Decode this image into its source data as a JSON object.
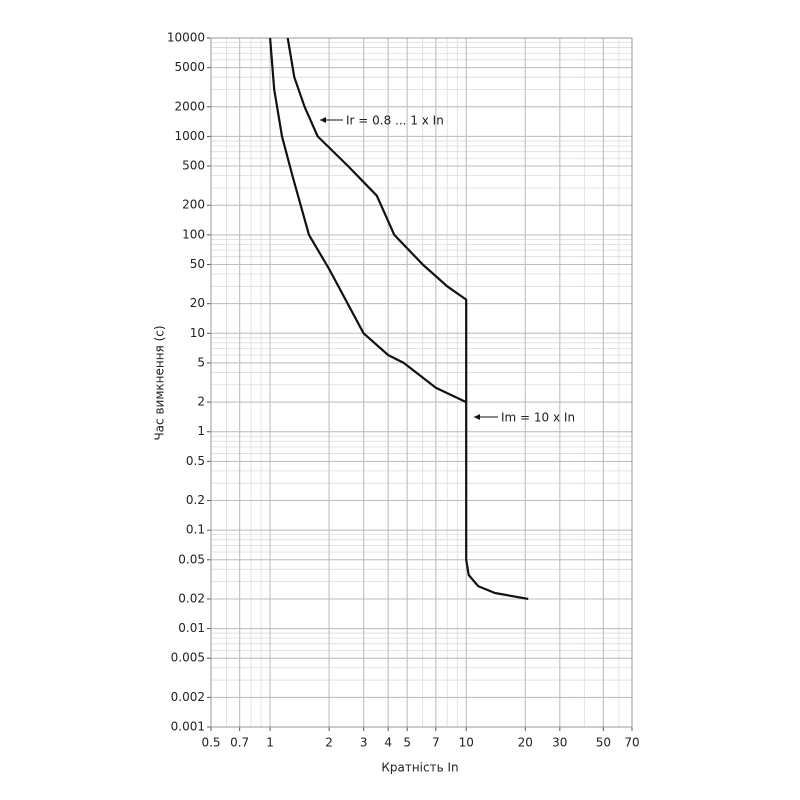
{
  "chart_data": {
    "type": "line",
    "xlabel": "Кратність In",
    "ylabel": "Час вимкнення (с)",
    "log_x": true,
    "log_y": true,
    "grid": true,
    "minor_grid": true,
    "xlim": [
      0.5,
      70
    ],
    "ylim": [
      0.001,
      10000
    ],
    "xticks": [
      0.5,
      0.7,
      1,
      2,
      3,
      4,
      5,
      7,
      10,
      20,
      30,
      50,
      70
    ],
    "yticks": [
      0.001,
      0.002,
      0.005,
      0.01,
      0.02,
      0.05,
      0.1,
      0.2,
      0.5,
      1,
      2,
      5,
      10,
      20,
      50,
      100,
      200,
      500,
      1000,
      2000,
      5000,
      10000
    ],
    "series": [
      {
        "color": "#111111",
        "x": [
          1.23,
          1.33,
          1.5,
          1.75,
          2.5,
          3.5,
          4.3,
          6,
          8,
          10,
          10,
          10.3,
          11.5,
          14,
          20.7
        ],
        "values": [
          10000,
          4000,
          2000,
          1000,
          500,
          250,
          100,
          50,
          30,
          22,
          0.05,
          0.035,
          0.027,
          0.023,
          0.02
        ]
      },
      {
        "color": "#111111",
        "x": [
          1.0,
          1.05,
          1.15,
          1.3,
          1.58,
          2.0,
          3.0,
          4.0,
          4.8,
          7.0,
          10
        ],
        "values": [
          10000,
          3000,
          1000,
          400,
          100,
          45,
          10,
          6,
          5,
          2.8,
          2
        ]
      }
    ],
    "annotations": [
      "Ir = 0.8 ... 1 x In",
      "Im = 10 x In"
    ]
  }
}
